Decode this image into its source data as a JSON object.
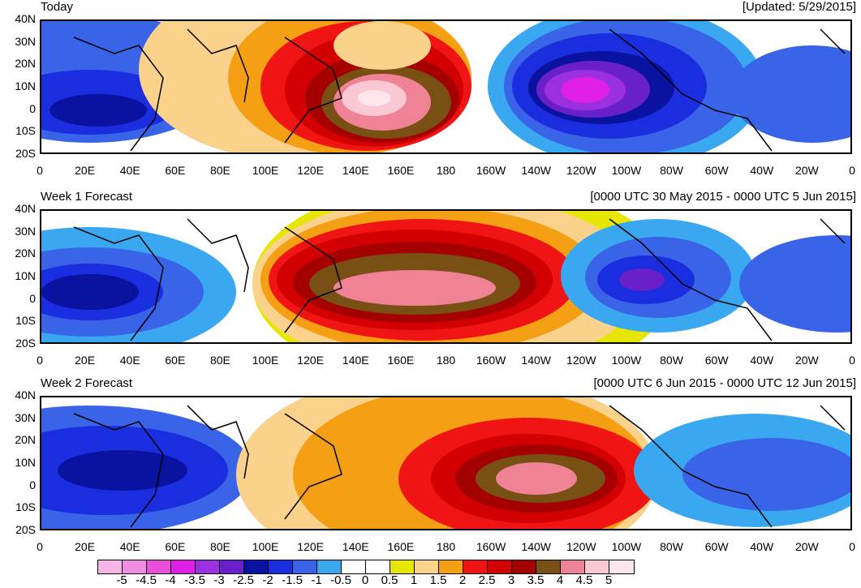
{
  "panels": [
    {
      "title": "Today",
      "subtitle": "[Updated: 5/29/2015]"
    },
    {
      "title": "Week 1 Forecast",
      "subtitle": "[0000 UTC 30 May 2015 - 0000 UTC 5 Jun 2015]"
    },
    {
      "title": "Week 2 Forecast",
      "subtitle": "[0000 UTC 6 Jun 2015 - 0000 UTC 12 Jun 2015]"
    }
  ],
  "lat_labels": [
    "40N",
    "30N",
    "20N",
    "10N",
    "0",
    "10S",
    "20S"
  ],
  "lon_labels": [
    "0",
    "20E",
    "40E",
    "60E",
    "80E",
    "100E",
    "120E",
    "140E",
    "160E",
    "180",
    "160W",
    "140W",
    "120W",
    "100W",
    "80W",
    "60W",
    "40W",
    "20W",
    "0"
  ],
  "colorbar": {
    "labels": [
      "-5",
      "-4.5",
      "-4",
      "-3.5",
      "-3",
      "-2.5",
      "-2",
      "-1.5",
      "-1",
      "-0.5",
      "0",
      "0.5",
      "1",
      "1.5",
      "2",
      "2.5",
      "3",
      "3.5",
      "4",
      "4.5",
      "5"
    ],
    "colors": [
      "#f7b6e6",
      "#f08ee0",
      "#e94fd9",
      "#e020e8",
      "#9a30e0",
      "#6a20c8",
      "#0a12a0",
      "#1a2ee0",
      "#3a64e8",
      "#3aa8f0",
      "#ffffff",
      "#ffffff",
      "#e6e600",
      "#fad28c",
      "#f5a014",
      "#f01414",
      "#d20000",
      "#a50000",
      "#785014",
      "#f08296",
      "#fac8d2",
      "#ffe6ec"
    ]
  }
}
